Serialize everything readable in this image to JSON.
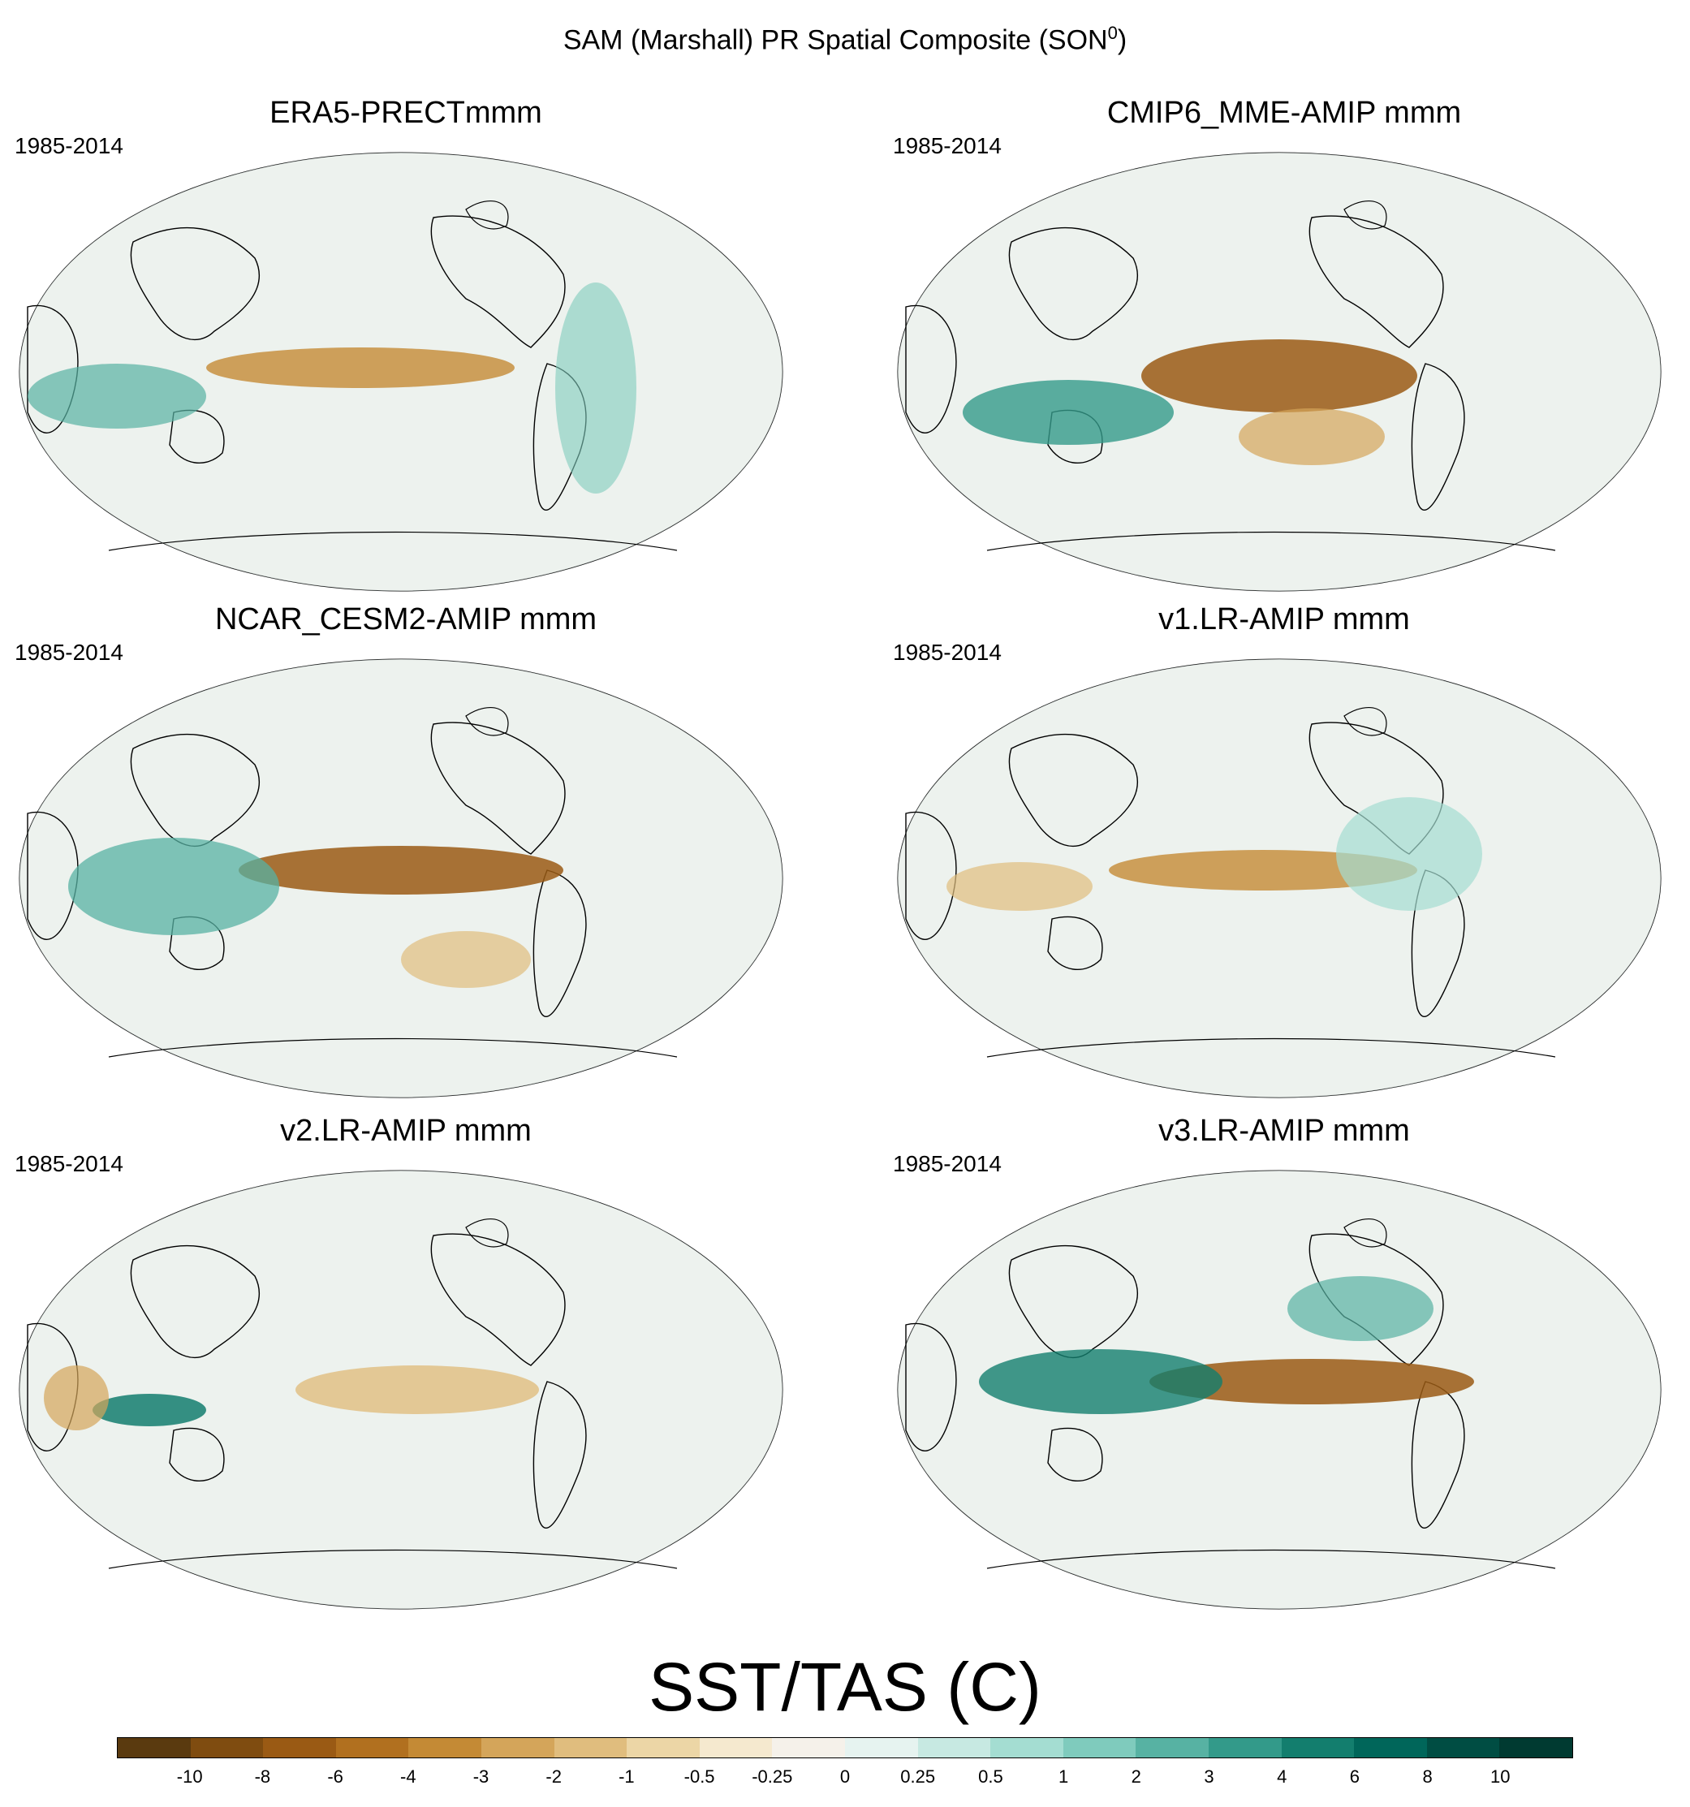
{
  "title": "SAM (Marshall) PR Spatial Composite (SON",
  "title_sup": "0",
  "title_close": ")",
  "chart_data": {
    "type": "heatmap",
    "projection": "Robinson (global, Pacific-centered)",
    "panels": [
      {
        "title": "ERA5-PRECTmmm",
        "period": "1985-2014"
      },
      {
        "title": "CMIP6_MME-AMIP  mmm",
        "period": "1985-2014"
      },
      {
        "title": "NCAR_CESM2-AMIP  mmm",
        "period": "1985-2014"
      },
      {
        "title": "v1.LR-AMIP  mmm",
        "period": "1985-2014"
      },
      {
        "title": "v2.LR-AMIP  mmm",
        "period": "1985-2014"
      },
      {
        "title": "v3.LR-AMIP  mmm",
        "period": "1985-2014"
      }
    ],
    "colorbar": {
      "label": "SST/TAS (C)",
      "levels": [
        "-10",
        "-8",
        "-6",
        "-4",
        "-3",
        "-2",
        "-1",
        "-0.5",
        "-0.25",
        "0",
        "0.25",
        "0.5",
        "1",
        "2",
        "3",
        "4",
        "6",
        "8",
        "10"
      ],
      "colors": [
        "#5a3a0f",
        "#7f4c10",
        "#9a5a14",
        "#b1701f",
        "#c48a35",
        "#d4a55a",
        "#e0bd7e",
        "#ecd6a6",
        "#f5e9cf",
        "#f5f1ea",
        "#e6f3f0",
        "#c7e9e2",
        "#a4ddd2",
        "#7fcbbd",
        "#57b2a3",
        "#339a8a",
        "#137e6e",
        "#00665a",
        "#004d43",
        "#003a31"
      ]
    }
  }
}
